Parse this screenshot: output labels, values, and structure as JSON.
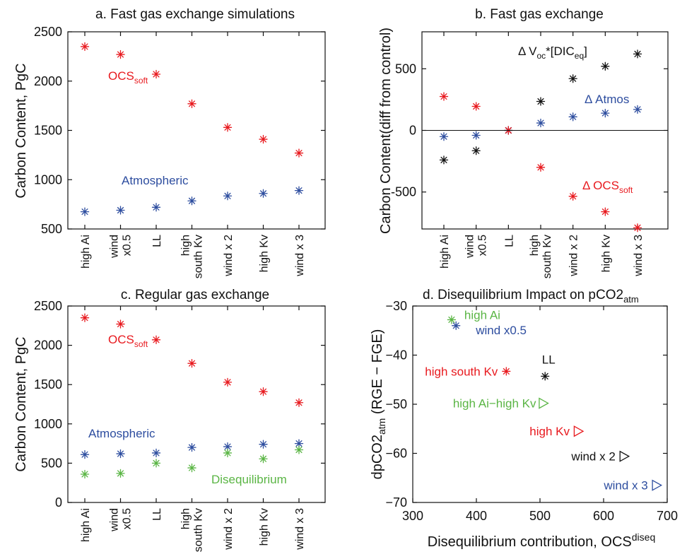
{
  "categories": [
    "high Ai",
    "wind x0.5",
    "LL",
    "high south Kv",
    "wind x 2",
    "high Kv",
    "wind x 3"
  ],
  "chart_data": [
    {
      "id": "a",
      "type": "scatter",
      "title": "a. Fast gas exchange simulations",
      "ylabel": "Carbon Content, PgC",
      "ylim": [
        500,
        2500
      ],
      "yticks": [
        500,
        1000,
        1500,
        2000,
        2500
      ],
      "series": [
        {
          "name": "OCS",
          "sub": "soft",
          "color": "#e8191e",
          "values": [
            2350,
            2270,
            2070,
            1770,
            1530,
            1410,
            1270
          ]
        },
        {
          "name": "Atmospheric",
          "color": "#2d4d9f",
          "values": [
            675,
            690,
            720,
            785,
            835,
            860,
            890
          ]
        }
      ]
    },
    {
      "id": "b",
      "type": "scatter",
      "title": "b. Fast gas exchange",
      "ylabel": "Carbon Content(diff from control)",
      "ylim": [
        -800,
        800
      ],
      "yticks": [
        -500,
        0,
        500
      ],
      "zero_line": true,
      "series": [
        {
          "name": "Δ V",
          "sub": "oc",
          "name2": "*[DIC",
          "sub2": "eq",
          "name3": "]",
          "color": "#111111",
          "values": [
            -240,
            -165,
            0,
            235,
            420,
            520,
            620
          ]
        },
        {
          "name": "Δ Atmos",
          "color": "#2d4d9f",
          "values": [
            -50,
            -40,
            0,
            60,
            110,
            140,
            170
          ]
        },
        {
          "name": "Δ OCS",
          "sub": "soft",
          "color": "#e8191e",
          "values": [
            275,
            195,
            0,
            -300,
            -535,
            -660,
            -790
          ]
        }
      ]
    },
    {
      "id": "c",
      "type": "scatter",
      "title": "c. Regular gas exchange",
      "ylabel": "Carbon Content, PgC",
      "ylim": [
        0,
        2500
      ],
      "yticks": [
        0,
        500,
        1000,
        1500,
        2000,
        2500
      ],
      "series": [
        {
          "name": "OCS",
          "sub": "soft",
          "color": "#e8191e",
          "values": [
            2350,
            2270,
            2070,
            1770,
            1530,
            1410,
            1270
          ]
        },
        {
          "name": "Atmospheric",
          "color": "#2d4d9f",
          "values": [
            610,
            620,
            630,
            700,
            710,
            740,
            750
          ]
        },
        {
          "name": "Disequilibrium",
          "color": "#5ab544",
          "values": [
            360,
            370,
            500,
            440,
            630,
            555,
            670
          ]
        }
      ]
    },
    {
      "id": "d",
      "type": "scatter",
      "title": "d. Disequilibrium Impact on pCO2",
      "title_sub": "atm",
      "xlabel": "Disequilibrium contribution, OCS",
      "xlabel_sup": "diseq",
      "ylabel": "dpCO2",
      "ylabel_sub": "atm",
      "ylabel_tail": " (RGE − FGE)",
      "xlim": [
        300,
        700
      ],
      "ylim": [
        -70,
        -30
      ],
      "xticks": [
        300,
        400,
        500,
        600,
        700
      ],
      "yticks": [
        -70,
        -60,
        -50,
        -40,
        -30
      ],
      "points": [
        {
          "label": "high Ai",
          "x": 361,
          "y": -32.8,
          "marker": "star",
          "color": "#5ab544"
        },
        {
          "label": "wind x0.5",
          "x": 368,
          "y": -34.0,
          "marker": "star",
          "color": "#2d4d9f"
        },
        {
          "label": "LL",
          "x": 508,
          "y": -44.3,
          "marker": "star",
          "color": "#111111"
        },
        {
          "label": "high south Kv",
          "x": 447,
          "y": -43.3,
          "marker": "star",
          "color": "#e8191e"
        },
        {
          "label": "high Ai−high Kv",
          "x": 505,
          "y": -49.8,
          "marker": "triangle",
          "color": "#5ab544"
        },
        {
          "label": "high Kv",
          "x": 560,
          "y": -55.5,
          "marker": "triangle",
          "color": "#e8191e"
        },
        {
          "label": "wind x 2",
          "x": 632,
          "y": -60.6,
          "marker": "triangle",
          "color": "#111111"
        },
        {
          "label": "wind x 3",
          "x": 683,
          "y": -66.5,
          "marker": "triangle",
          "color": "#2d4d9f"
        }
      ]
    }
  ]
}
